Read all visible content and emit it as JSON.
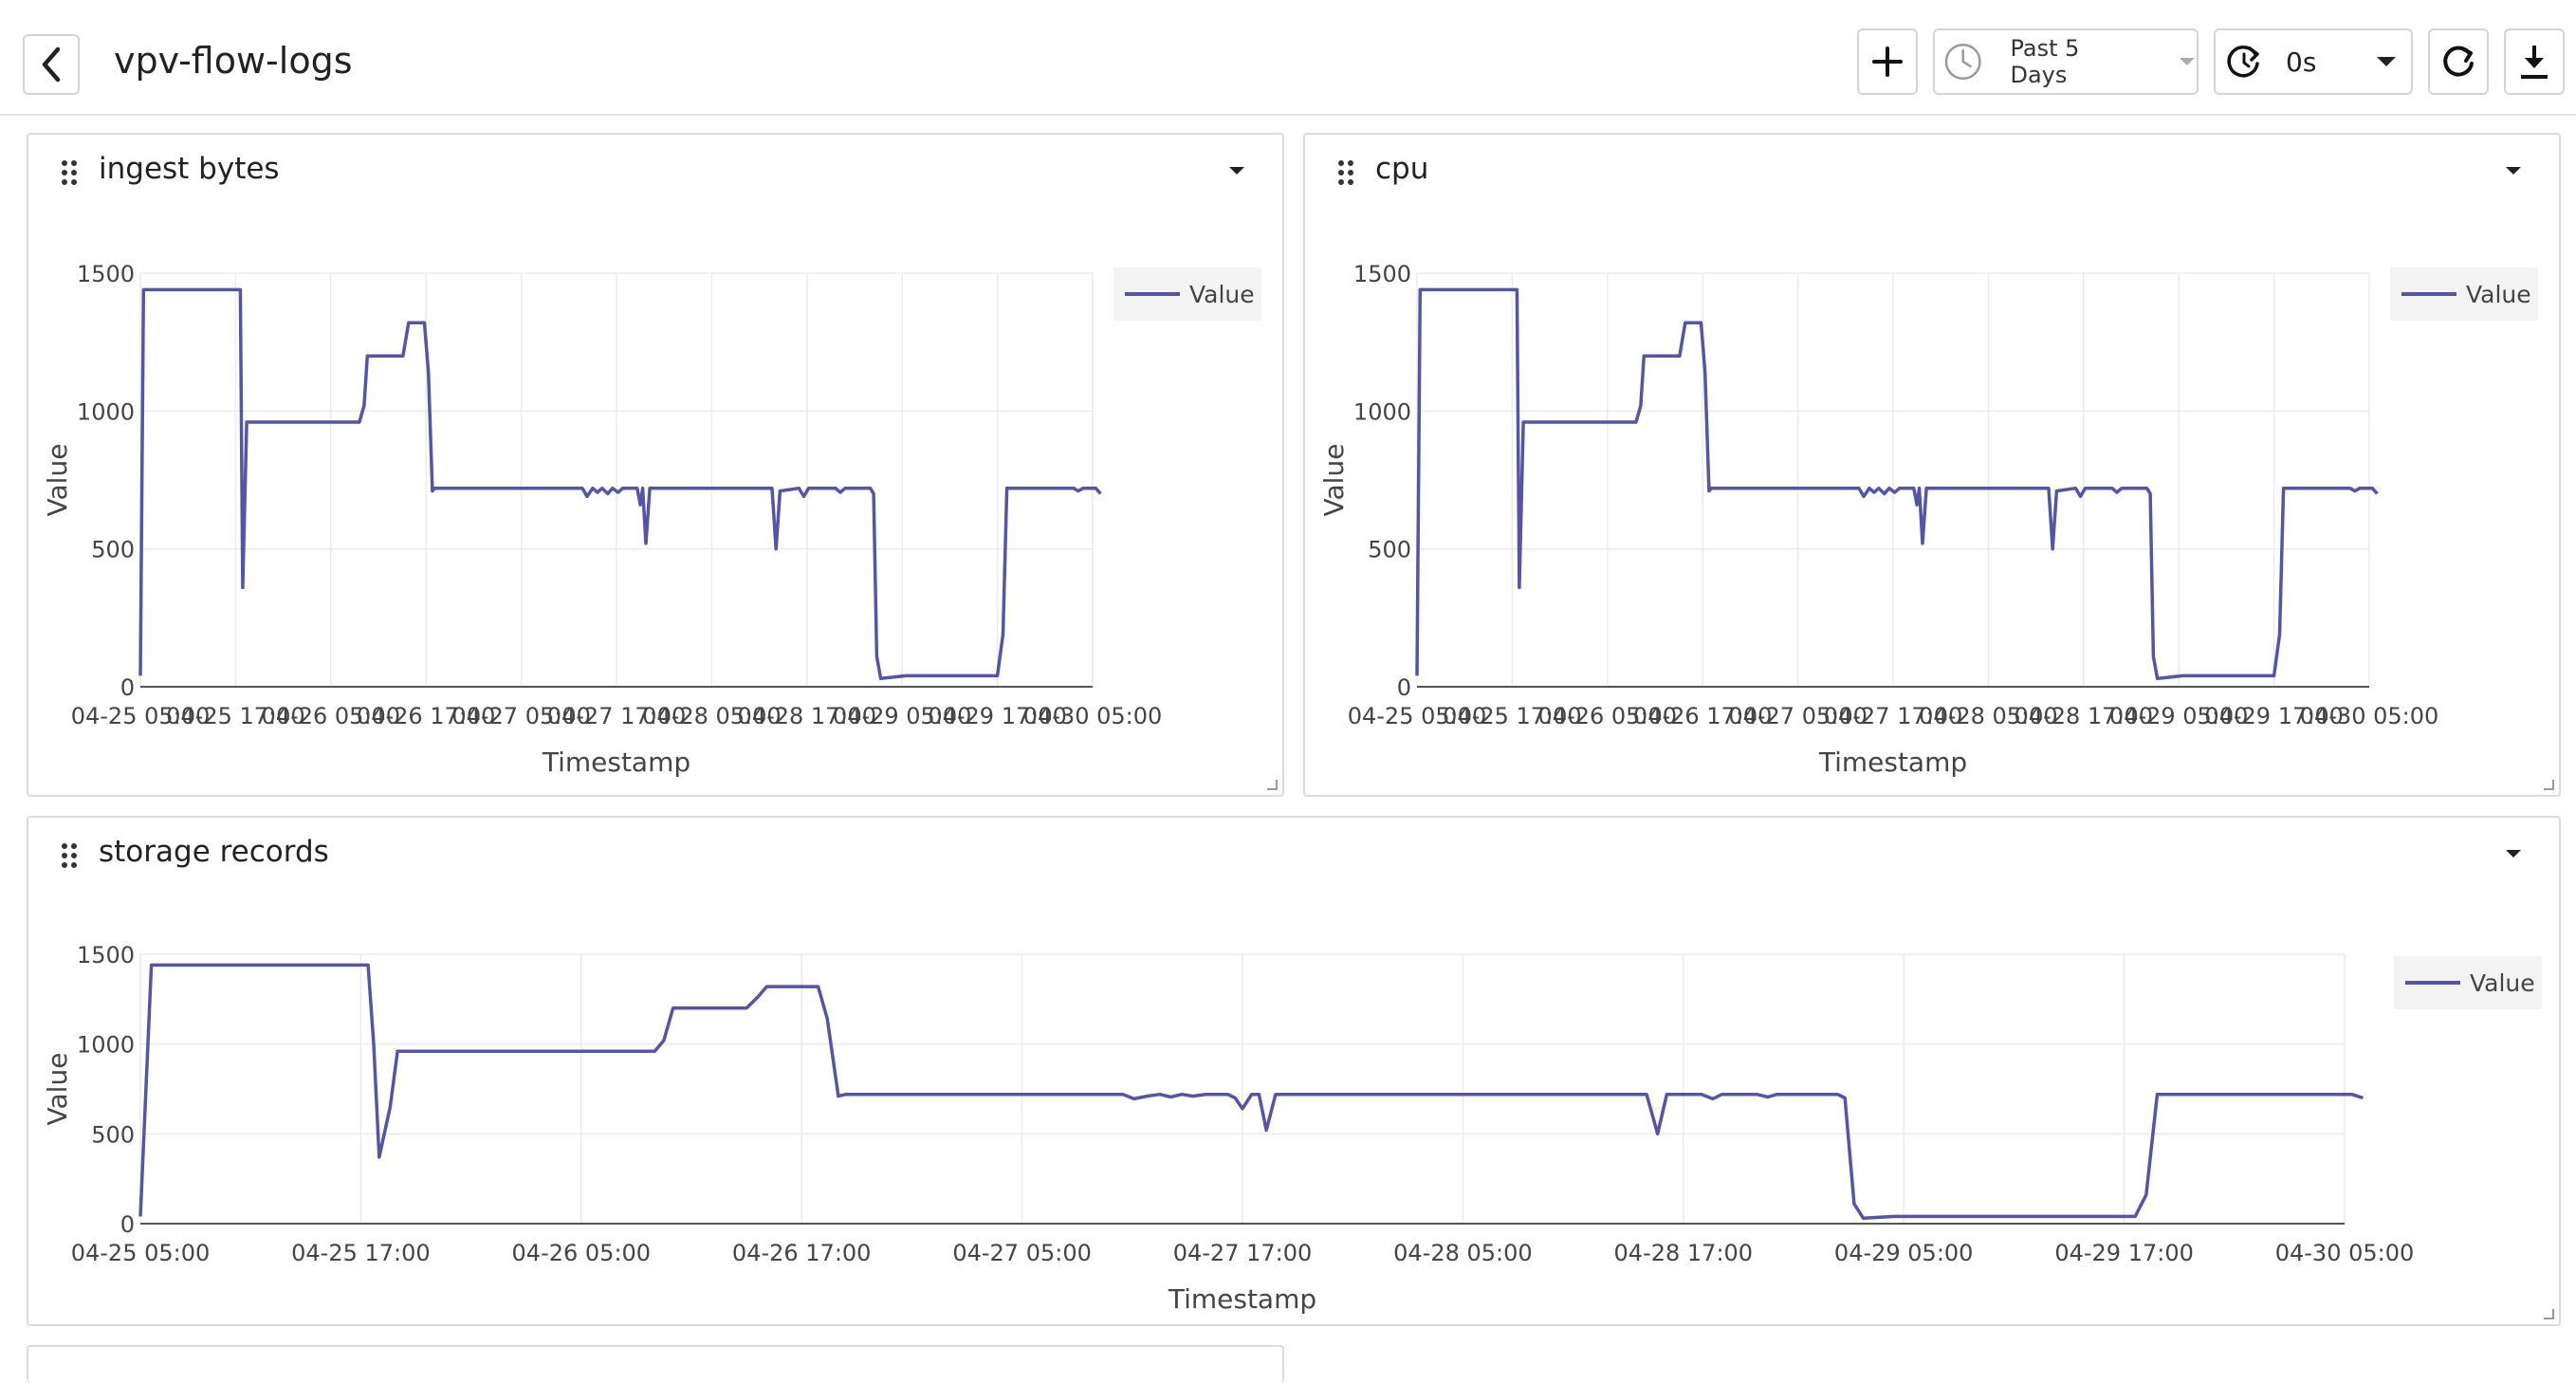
{
  "header": {
    "title": "vpv-flow-logs",
    "time_range": "Past 5 Days",
    "refresh_interval": "0s",
    "icons": [
      "back-icon",
      "add-icon",
      "clock-icon",
      "caret-down-icon",
      "timer-refresh-icon",
      "refresh-icon",
      "download-icon"
    ]
  },
  "colors": {
    "series": "#5454a8",
    "grid": "#ebebeb",
    "border": "#dcdcdc"
  },
  "panels": [
    {
      "title": "ingest bytes"
    },
    {
      "title": "cpu"
    },
    {
      "title": "storage records"
    }
  ],
  "chart_data": [
    {
      "type": "line",
      "title": "ingest bytes",
      "xlabel": "Timestamp",
      "ylabel": "Value",
      "ylim": [
        0,
        1500
      ],
      "yticks": [
        "0",
        "500",
        "1000",
        "1500"
      ],
      "xticks": [
        "04-25 05:00",
        "04-25 17:00",
        "04-26 05:00",
        "04-26 17:00",
        "04-27 05:00",
        "04-27 17:00",
        "04-28 05:00",
        "04-28 17:00",
        "04-29 05:00",
        "04-29 17:00",
        "04-30 05:00"
      ],
      "legend": "top-right",
      "grid": true,
      "series": [
        {
          "name": "Value",
          "points": [
            [
              0,
              40
            ],
            [
              0.4,
              1440
            ],
            [
              12.6,
              1440
            ],
            [
              12.9,
              360
            ],
            [
              13.4,
              960
            ],
            [
              27.6,
              960
            ],
            [
              28.2,
              1020
            ],
            [
              28.6,
              1200
            ],
            [
              33.1,
              1200
            ],
            [
              33.8,
              1320
            ],
            [
              35.8,
              1320
            ],
            [
              36.3,
              1140
            ],
            [
              36.8,
              710
            ],
            [
              37.1,
              720
            ],
            [
              55.7,
              720
            ],
            [
              56.3,
              690
            ],
            [
              57.0,
              720
            ],
            [
              57.6,
              705
            ],
            [
              58.2,
              720
            ],
            [
              58.9,
              700
            ],
            [
              59.5,
              720
            ],
            [
              60.2,
              705
            ],
            [
              60.8,
              720
            ],
            [
              62.6,
              720
            ],
            [
              63.0,
              660
            ],
            [
              63.3,
              720
            ],
            [
              63.7,
              520
            ],
            [
              64.2,
              720
            ],
            [
              79.6,
              720
            ],
            [
              80.1,
              500
            ],
            [
              80.6,
              710
            ],
            [
              83.0,
              720
            ],
            [
              83.6,
              690
            ],
            [
              84.2,
              720
            ],
            [
              87.6,
              720
            ],
            [
              88.2,
              705
            ],
            [
              88.8,
              720
            ],
            [
              92.0,
              720
            ],
            [
              92.4,
              700
            ],
            [
              92.8,
              110
            ],
            [
              93.3,
              30
            ],
            [
              96.5,
              40
            ],
            [
              108.0,
              40
            ],
            [
              108.7,
              190
            ],
            [
              109.2,
              720
            ],
            [
              117.6,
              720
            ],
            [
              118.2,
              710
            ],
            [
              118.8,
              720
            ],
            [
              120.4,
              720
            ],
            [
              121.0,
              700
            ]
          ]
        }
      ]
    },
    {
      "type": "line",
      "title": "cpu",
      "xlabel": "Timestamp",
      "ylabel": "Value",
      "ylim": [
        0,
        1500
      ],
      "yticks": [
        "0",
        "500",
        "1000",
        "1500"
      ],
      "xticks": [
        "04-25 05:00",
        "04-25 17:00",
        "04-26 05:00",
        "04-26 17:00",
        "04-27 05:00",
        "04-27 17:00",
        "04-28 05:00",
        "04-28 17:00",
        "04-29 05:00",
        "04-29 17:00",
        "04-30 05:00"
      ],
      "legend": "top-right",
      "grid": true,
      "series": [
        {
          "name": "Value",
          "points": [
            [
              0,
              40
            ],
            [
              0.4,
              1440
            ],
            [
              12.6,
              1440
            ],
            [
              12.9,
              360
            ],
            [
              13.4,
              960
            ],
            [
              27.6,
              960
            ],
            [
              28.2,
              1020
            ],
            [
              28.6,
              1200
            ],
            [
              33.1,
              1200
            ],
            [
              33.8,
              1320
            ],
            [
              35.8,
              1320
            ],
            [
              36.3,
              1140
            ],
            [
              36.8,
              710
            ],
            [
              37.1,
              720
            ],
            [
              55.7,
              720
            ],
            [
              56.3,
              690
            ],
            [
              57.0,
              720
            ],
            [
              57.6,
              705
            ],
            [
              58.2,
              720
            ],
            [
              58.9,
              700
            ],
            [
              59.5,
              720
            ],
            [
              60.2,
              705
            ],
            [
              60.8,
              720
            ],
            [
              62.6,
              720
            ],
            [
              63.0,
              660
            ],
            [
              63.3,
              720
            ],
            [
              63.7,
              520
            ],
            [
              64.2,
              720
            ],
            [
              79.6,
              720
            ],
            [
              80.1,
              500
            ],
            [
              80.6,
              710
            ],
            [
              83.0,
              720
            ],
            [
              83.6,
              690
            ],
            [
              84.2,
              720
            ],
            [
              87.6,
              720
            ],
            [
              88.2,
              705
            ],
            [
              88.8,
              720
            ],
            [
              92.0,
              720
            ],
            [
              92.4,
              700
            ],
            [
              92.8,
              110
            ],
            [
              93.3,
              30
            ],
            [
              96.5,
              40
            ],
            [
              108.0,
              40
            ],
            [
              108.7,
              190
            ],
            [
              109.2,
              720
            ],
            [
              117.6,
              720
            ],
            [
              118.2,
              710
            ],
            [
              118.8,
              720
            ],
            [
              120.4,
              720
            ],
            [
              121.0,
              700
            ]
          ]
        }
      ]
    },
    {
      "type": "line",
      "title": "storage records",
      "xlabel": "Timestamp",
      "ylabel": "Value",
      "ylim": [
        0,
        1500
      ],
      "yticks": [
        "0",
        "500",
        "1000",
        "1500"
      ],
      "xticks": [
        "04-25 05:00",
        "04-25 17:00",
        "04-26 05:00",
        "04-26 17:00",
        "04-27 05:00",
        "04-27 17:00",
        "04-28 05:00",
        "04-28 17:00",
        "04-29 05:00",
        "04-29 17:00",
        "04-30 05:00"
      ],
      "legend": "top-right",
      "grid": true,
      "series": [
        {
          "name": "Value",
          "points": [
            [
              0,
              40
            ],
            [
              0.6,
              1440
            ],
            [
              12.4,
              1440
            ],
            [
              12.7,
              1000
            ],
            [
              13.0,
              370
            ],
            [
              13.6,
              650
            ],
            [
              14.0,
              960
            ],
            [
              28.0,
              960
            ],
            [
              28.5,
              1020
            ],
            [
              29.0,
              1200
            ],
            [
              33.0,
              1200
            ],
            [
              33.6,
              1260
            ],
            [
              34.1,
              1320
            ],
            [
              36.9,
              1320
            ],
            [
              37.4,
              1140
            ],
            [
              38.0,
              710
            ],
            [
              38.4,
              720
            ],
            [
              53.5,
              720
            ],
            [
              54.1,
              695
            ],
            [
              54.8,
              710
            ],
            [
              55.5,
              720
            ],
            [
              56.1,
              705
            ],
            [
              56.7,
              720
            ],
            [
              57.3,
              710
            ],
            [
              58.0,
              720
            ],
            [
              59.2,
              720
            ],
            [
              59.6,
              700
            ],
            [
              60.0,
              640
            ],
            [
              60.5,
              720
            ],
            [
              60.9,
              720
            ],
            [
              61.3,
              520
            ],
            [
              61.8,
              720
            ],
            [
              82.0,
              720
            ],
            [
              82.6,
              500
            ],
            [
              83.1,
              720
            ],
            [
              85.0,
              720
            ],
            [
              85.6,
              695
            ],
            [
              86.1,
              720
            ],
            [
              88.0,
              720
            ],
            [
              88.6,
              705
            ],
            [
              89.1,
              720
            ],
            [
              92.4,
              720
            ],
            [
              92.8,
              700
            ],
            [
              93.3,
              110
            ],
            [
              93.8,
              30
            ],
            [
              95.5,
              40
            ],
            [
              108.6,
              40
            ],
            [
              109.2,
              160
            ],
            [
              109.8,
              720
            ],
            [
              120.4,
              720
            ],
            [
              121.0,
              700
            ]
          ]
        }
      ]
    }
  ]
}
